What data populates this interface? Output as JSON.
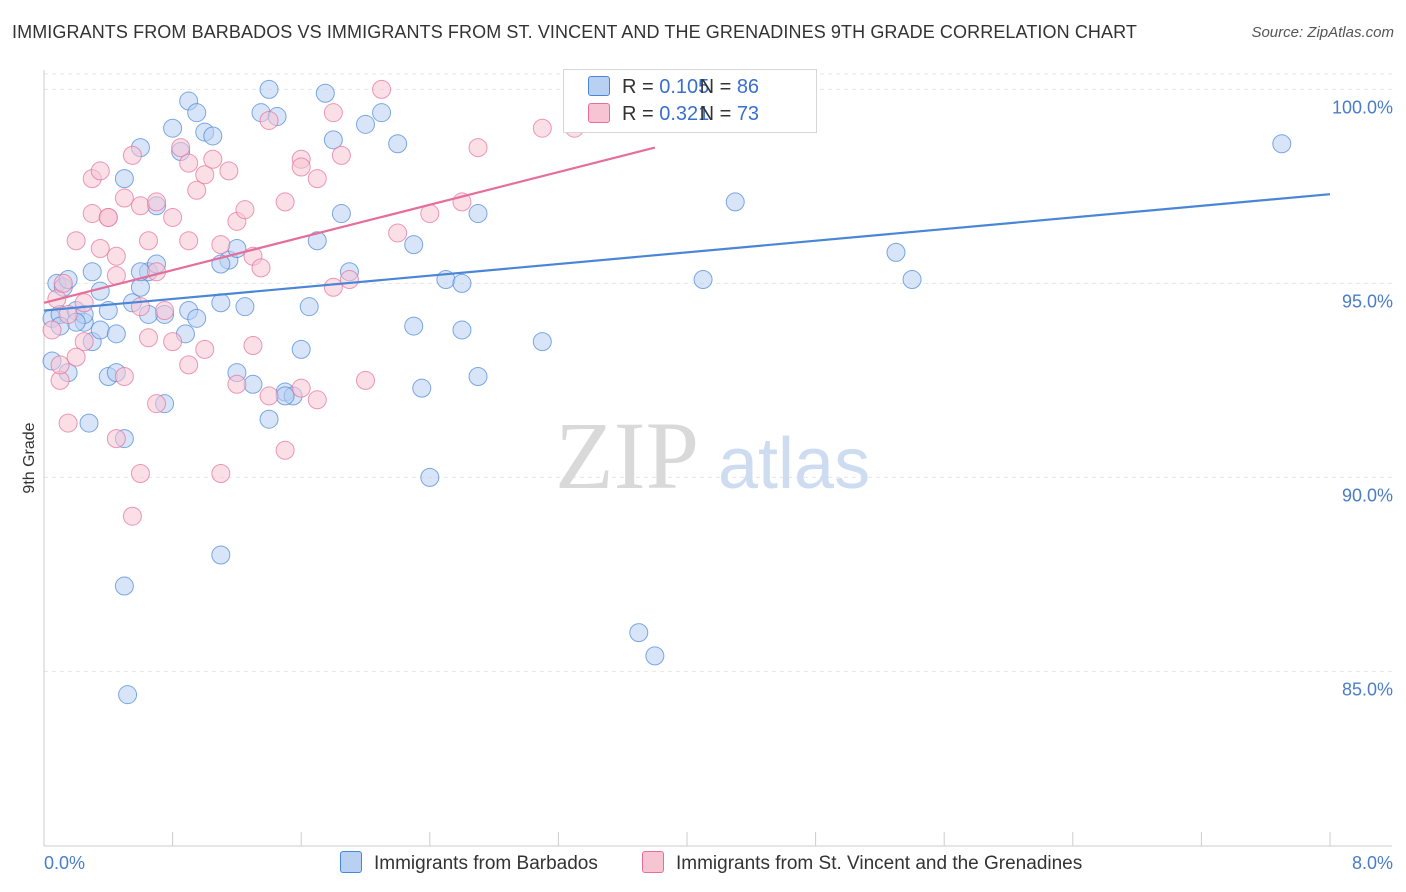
{
  "title": "IMMIGRANTS FROM BARBADOS VS IMMIGRANTS FROM ST. VINCENT AND THE GRENADINES 9TH GRADE CORRELATION CHART",
  "source": "Source: ZipAtlas.com",
  "watermark": {
    "zip": "ZIP",
    "atlas": "atlas"
  },
  "legend": {
    "r_label": "R =",
    "n_label": "N =",
    "rows": [
      {
        "r": "0.105",
        "n": "86"
      },
      {
        "r": "0.321",
        "n": "73"
      }
    ]
  },
  "chart_data": {
    "type": "scatter",
    "title": "IMMIGRANTS FROM BARBADOS VS IMMIGRANTS FROM ST. VINCENT AND THE GRENADINES 9TH GRADE CORRELATION CHART",
    "xlabel": "",
    "ylabel": "9th Grade",
    "xlim": [
      0,
      8
    ],
    "ylim": [
      80.5,
      100.5
    ],
    "x_tick_labels": [
      "0.0%",
      "8.0%"
    ],
    "y_ticks": [
      85,
      90,
      95,
      100
    ],
    "y_tick_labels": [
      "85.0%",
      "90.0%",
      "95.0%",
      "100.0%"
    ],
    "grid": true,
    "colors": {
      "blue": "#4a86d6",
      "pink": "#e56f9a",
      "blue_fill": "#b8d0f2",
      "pink_fill": "#f7c4d4",
      "tick": "#4a7dc9"
    },
    "series": [
      {
        "name": "Immigrants from Barbados",
        "color": "blue",
        "trend": {
          "x": [
            0.0,
            8.0
          ],
          "y": [
            94.3,
            97.3
          ]
        },
        "points": [
          [
            0.05,
            94.1
          ],
          [
            0.1,
            94.2
          ],
          [
            0.08,
            95.0
          ],
          [
            0.12,
            94.9
          ],
          [
            0.15,
            95.1
          ],
          [
            0.2,
            94.3
          ],
          [
            0.25,
            94.0
          ],
          [
            0.3,
            93.5
          ],
          [
            0.35,
            93.8
          ],
          [
            0.4,
            92.6
          ],
          [
            0.45,
            92.7
          ],
          [
            0.5,
            91.0
          ],
          [
            0.55,
            94.5
          ],
          [
            0.6,
            94.9
          ],
          [
            0.65,
            95.3
          ],
          [
            0.7,
            97.0
          ],
          [
            0.75,
            94.2
          ],
          [
            0.8,
            99.0
          ],
          [
            0.85,
            98.4
          ],
          [
            0.9,
            99.7
          ],
          [
            0.95,
            99.4
          ],
          [
            1.0,
            98.9
          ],
          [
            1.05,
            98.8
          ],
          [
            1.1,
            94.5
          ],
          [
            1.15,
            95.6
          ],
          [
            1.2,
            95.9
          ],
          [
            1.25,
            94.4
          ],
          [
            1.3,
            92.4
          ],
          [
            1.35,
            99.4
          ],
          [
            1.4,
            100.0
          ],
          [
            1.45,
            99.3
          ],
          [
            1.5,
            92.2
          ],
          [
            1.55,
            92.1
          ],
          [
            1.6,
            93.3
          ],
          [
            1.65,
            94.4
          ],
          [
            1.7,
            96.1
          ],
          [
            1.75,
            99.9
          ],
          [
            1.8,
            98.7
          ],
          [
            1.85,
            96.8
          ],
          [
            1.9,
            95.3
          ],
          [
            2.0,
            99.1
          ],
          [
            2.1,
            99.4
          ],
          [
            2.2,
            98.6
          ],
          [
            2.3,
            96.0
          ],
          [
            2.35,
            92.3
          ],
          [
            2.4,
            90.0
          ],
          [
            2.5,
            95.1
          ],
          [
            2.6,
            93.8
          ],
          [
            2.7,
            96.8
          ],
          [
            0.3,
            95.3
          ],
          [
            0.4,
            94.3
          ],
          [
            0.45,
            93.7
          ],
          [
            0.5,
            97.7
          ],
          [
            0.6,
            98.5
          ],
          [
            0.7,
            95.5
          ],
          [
            0.75,
            91.9
          ],
          [
            0.88,
            93.7
          ],
          [
            0.9,
            94.3
          ],
          [
            0.95,
            94.1
          ],
          [
            1.1,
            95.5
          ],
          [
            1.2,
            92.7
          ],
          [
            1.4,
            91.5
          ],
          [
            1.5,
            92.1
          ],
          [
            3.1,
            93.5
          ],
          [
            0.25,
            94.2
          ],
          [
            0.35,
            94.8
          ],
          [
            0.15,
            92.7
          ],
          [
            0.28,
            91.4
          ],
          [
            0.5,
            87.2
          ],
          [
            0.52,
            84.4
          ],
          [
            1.1,
            88.0
          ],
          [
            2.3,
            93.9
          ],
          [
            2.6,
            95.0
          ],
          [
            4.3,
            97.1
          ],
          [
            5.3,
            95.8
          ],
          [
            5.4,
            95.1
          ],
          [
            4.1,
            95.1
          ],
          [
            2.7,
            92.6
          ],
          [
            0.2,
            94.0
          ],
          [
            0.05,
            93.0
          ],
          [
            7.7,
            98.6
          ],
          [
            3.7,
            86.0
          ],
          [
            3.8,
            85.4
          ],
          [
            0.6,
            95.3
          ],
          [
            0.65,
            94.2
          ],
          [
            0.1,
            93.9
          ]
        ]
      },
      {
        "name": "Immigrants from St. Vincent and the Grenadines",
        "color": "pink",
        "trend": {
          "x": [
            0.0,
            3.8
          ],
          "y": [
            94.5,
            98.5
          ]
        },
        "points": [
          [
            0.05,
            93.8
          ],
          [
            0.08,
            94.6
          ],
          [
            0.1,
            92.5
          ],
          [
            0.12,
            95.0
          ],
          [
            0.15,
            94.2
          ],
          [
            0.2,
            96.1
          ],
          [
            0.25,
            93.5
          ],
          [
            0.3,
            96.8
          ],
          [
            0.35,
            95.9
          ],
          [
            0.4,
            96.7
          ],
          [
            0.45,
            95.7
          ],
          [
            0.5,
            97.2
          ],
          [
            0.55,
            98.3
          ],
          [
            0.6,
            97.0
          ],
          [
            0.65,
            96.1
          ],
          [
            0.7,
            95.3
          ],
          [
            0.75,
            94.3
          ],
          [
            0.8,
            96.7
          ],
          [
            0.85,
            98.5
          ],
          [
            0.9,
            98.1
          ],
          [
            0.95,
            97.4
          ],
          [
            1.0,
            97.8
          ],
          [
            1.05,
            98.2
          ],
          [
            1.1,
            96.0
          ],
          [
            1.15,
            97.9
          ],
          [
            1.2,
            96.6
          ],
          [
            1.25,
            96.9
          ],
          [
            1.3,
            95.7
          ],
          [
            1.35,
            95.4
          ],
          [
            1.4,
            99.2
          ],
          [
            1.5,
            97.1
          ],
          [
            1.6,
            98.2
          ],
          [
            1.7,
            97.7
          ],
          [
            1.8,
            99.4
          ],
          [
            1.9,
            95.1
          ],
          [
            2.0,
            92.5
          ],
          [
            2.1,
            100.0
          ],
          [
            2.2,
            96.3
          ],
          [
            2.4,
            96.8
          ],
          [
            2.6,
            97.1
          ],
          [
            2.7,
            98.5
          ],
          [
            3.1,
            99.0
          ],
          [
            3.3,
            99.0
          ],
          [
            0.45,
            91.0
          ],
          [
            0.5,
            92.6
          ],
          [
            0.55,
            89.0
          ],
          [
            0.6,
            90.1
          ],
          [
            0.7,
            91.9
          ],
          [
            0.8,
            93.5
          ],
          [
            0.9,
            92.9
          ],
          [
            1.0,
            93.3
          ],
          [
            1.1,
            90.1
          ],
          [
            1.2,
            92.4
          ],
          [
            1.3,
            93.4
          ],
          [
            1.4,
            92.1
          ],
          [
            1.5,
            90.7
          ],
          [
            1.6,
            92.3
          ],
          [
            1.7,
            92.0
          ],
          [
            1.8,
            94.9
          ],
          [
            0.6,
            94.4
          ],
          [
            0.65,
            93.6
          ],
          [
            0.1,
            92.9
          ],
          [
            0.15,
            91.4
          ],
          [
            0.2,
            93.1
          ],
          [
            0.25,
            94.5
          ],
          [
            0.3,
            97.7
          ],
          [
            0.35,
            97.9
          ],
          [
            0.4,
            96.7
          ],
          [
            0.45,
            95.2
          ],
          [
            1.6,
            98.0
          ],
          [
            0.9,
            96.1
          ],
          [
            0.7,
            97.1
          ],
          [
            1.85,
            98.3
          ]
        ]
      }
    ]
  },
  "bottom_legend": {
    "items": [
      "Immigrants from Barbados",
      "Immigrants from St. Vincent and the Grenadines"
    ]
  }
}
